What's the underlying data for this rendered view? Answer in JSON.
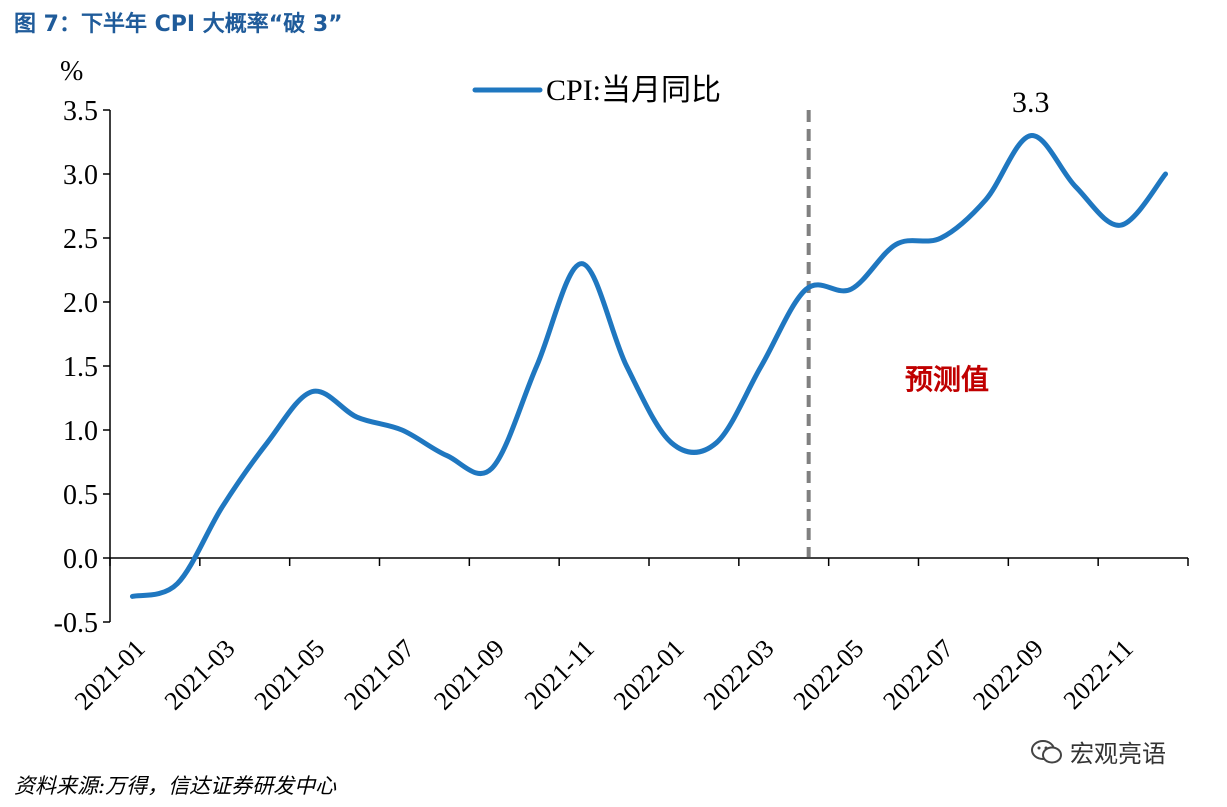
{
  "figure_title": "图 7：下半年 CPI 大概率“破 3”",
  "source_note": "资料来源:万得，信达证券研发中心",
  "watermark": {
    "text": "宏观亮语",
    "icon": "wechat-icon"
  },
  "colors": {
    "line": "#1f77c0",
    "title": "#1f5b9a",
    "forecast_text": "#c00000",
    "divider": "#808080"
  },
  "chart_data": {
    "type": "line",
    "unit_label": "%",
    "ylim": [
      -0.5,
      3.5
    ],
    "yticks": [
      "-0.5",
      "0.0",
      "0.5",
      "1.0",
      "1.5",
      "2.0",
      "2.5",
      "3.0",
      "3.5"
    ],
    "xtick_labels": [
      "2021-01",
      "2021-03",
      "2021-05",
      "2021-07",
      "2021-09",
      "2021-11",
      "2022-01",
      "2022-03",
      "2022-05",
      "2022-07",
      "2022-09",
      "2022-11"
    ],
    "x": [
      "2021-01",
      "2021-02",
      "2021-03",
      "2021-04",
      "2021-05",
      "2021-06",
      "2021-07",
      "2021-08",
      "2021-09",
      "2021-10",
      "2021-11",
      "2021-12",
      "2022-01",
      "2022-02",
      "2022-03",
      "2022-04",
      "2022-05",
      "2022-06",
      "2022-07",
      "2022-08",
      "2022-09",
      "2022-10",
      "2022-11",
      "2022-12"
    ],
    "series": [
      {
        "name": "CPI:当月同比",
        "values": [
          -0.3,
          -0.2,
          0.4,
          0.9,
          1.3,
          1.1,
          1.0,
          0.8,
          0.7,
          1.5,
          2.3,
          1.5,
          0.9,
          0.9,
          1.5,
          2.1,
          2.1,
          2.45,
          2.5,
          2.8,
          3.3,
          2.9,
          2.6,
          3.0
        ]
      }
    ],
    "legend_position": "top-center",
    "divider_at": "2022-04",
    "forecast_label": "预测值",
    "peak_label": "3.3",
    "grid": false
  }
}
